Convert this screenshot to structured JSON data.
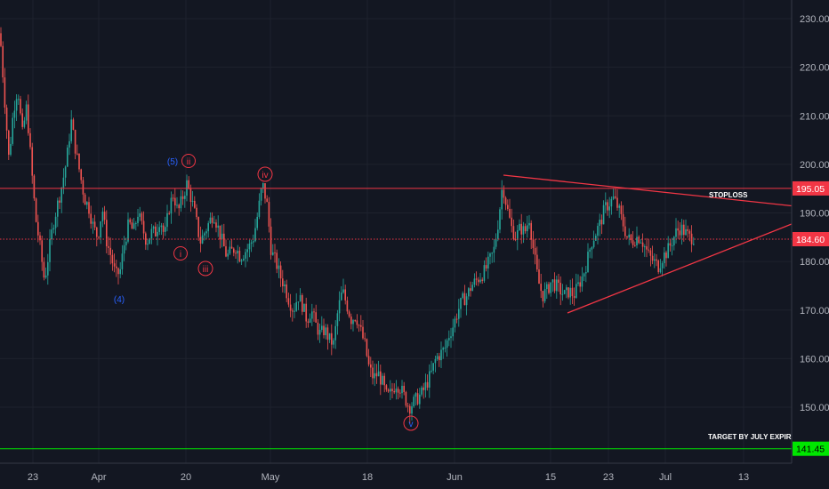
{
  "chart_data": {
    "type": "candlestick",
    "ylim": [
      139,
      232
    ],
    "y_ticks": [
      "150.00",
      "160.00",
      "170.00",
      "180.00",
      "190.00",
      "200.00",
      "210.00",
      "220.00",
      "230.00"
    ],
    "x_ticks": [
      "23",
      "Apr",
      "20",
      "May",
      "18",
      "Jun",
      "15",
      "23",
      "Jul",
      "13"
    ],
    "price_tags": [
      {
        "label": "195.05",
        "value": 195.05,
        "color": "#f23645"
      },
      {
        "label": "184.60",
        "value": 184.6,
        "color": "#f23645"
      },
      {
        "label": "141.45",
        "value": 141.45,
        "color": "#00e600"
      }
    ],
    "horizontal_lines": [
      {
        "value": 195.05,
        "color": "#f23645",
        "style": "solid"
      },
      {
        "value": 184.6,
        "color": "#f23645",
        "style": "dotted"
      },
      {
        "value": 141.45,
        "color": "#00e600",
        "style": "solid"
      }
    ],
    "annotations": [
      {
        "text": "STOPLOSS"
      },
      {
        "text": "TARGET BY JULY EXPIRY"
      }
    ],
    "wave_labels_blue": [
      "(4)",
      "(5)",
      "v"
    ],
    "wave_labels_red": [
      "ii",
      "i",
      "iii",
      "iv"
    ],
    "price_path": [
      [
        0,
        227
      ],
      [
        5,
        214
      ],
      [
        10,
        201
      ],
      [
        15,
        211
      ],
      [
        20,
        216
      ],
      [
        25,
        206
      ],
      [
        30,
        212
      ],
      [
        35,
        200
      ],
      [
        40,
        189
      ],
      [
        45,
        183
      ],
      [
        50,
        176
      ],
      [
        55,
        182
      ],
      [
        60,
        188
      ],
      [
        65,
        192
      ],
      [
        70,
        196
      ],
      [
        75,
        201
      ],
      [
        80,
        209
      ],
      [
        85,
        203
      ],
      [
        90,
        198
      ],
      [
        95,
        193
      ],
      [
        100,
        191
      ],
      [
        105,
        187
      ],
      [
        110,
        185
      ],
      [
        115,
        191
      ],
      [
        120,
        184
      ],
      [
        125,
        181
      ],
      [
        130,
        177
      ],
      [
        135,
        178
      ],
      [
        140,
        184
      ],
      [
        145,
        188
      ],
      [
        150,
        186
      ],
      [
        155,
        190
      ],
      [
        160,
        187
      ],
      [
        165,
        184
      ],
      [
        170,
        186
      ],
      [
        175,
        186
      ],
      [
        180,
        189
      ],
      [
        185,
        185
      ],
      [
        190,
        191
      ],
      [
        195,
        194
      ],
      [
        200,
        190
      ],
      [
        205,
        193
      ],
      [
        210,
        196
      ],
      [
        215,
        193
      ],
      [
        220,
        189
      ],
      [
        225,
        184
      ],
      [
        230,
        186
      ],
      [
        235,
        188
      ],
      [
        240,
        190
      ],
      [
        245,
        187
      ],
      [
        250,
        184
      ],
      [
        255,
        181
      ],
      [
        260,
        182
      ],
      [
        265,
        183
      ],
      [
        270,
        181
      ],
      [
        275,
        182
      ],
      [
        280,
        183
      ],
      [
        285,
        185
      ],
      [
        290,
        190
      ],
      [
        295,
        196
      ],
      [
        300,
        192
      ],
      [
        305,
        182
      ],
      [
        310,
        180
      ],
      [
        315,
        177
      ],
      [
        320,
        175
      ],
      [
        325,
        172
      ],
      [
        330,
        170
      ],
      [
        335,
        173
      ],
      [
        340,
        171
      ],
      [
        345,
        168
      ],
      [
        350,
        170
      ],
      [
        355,
        167
      ],
      [
        360,
        165
      ],
      [
        365,
        166
      ],
      [
        370,
        164
      ],
      [
        375,
        163
      ],
      [
        380,
        170
      ],
      [
        385,
        174
      ],
      [
        390,
        171
      ],
      [
        395,
        168
      ],
      [
        400,
        169
      ],
      [
        405,
        166
      ],
      [
        410,
        163
      ],
      [
        415,
        158
      ],
      [
        420,
        156
      ],
      [
        425,
        157
      ],
      [
        430,
        155
      ],
      [
        435,
        152
      ],
      [
        440,
        153
      ],
      [
        445,
        155
      ],
      [
        450,
        154
      ],
      [
        455,
        152
      ],
      [
        460,
        150
      ],
      [
        465,
        151
      ],
      [
        470,
        152
      ],
      [
        475,
        153
      ],
      [
        480,
        155
      ],
      [
        485,
        157
      ],
      [
        490,
        160
      ],
      [
        495,
        161
      ],
      [
        500,
        162
      ],
      [
        505,
        165
      ],
      [
        510,
        167
      ],
      [
        515,
        170
      ],
      [
        520,
        172
      ],
      [
        525,
        173
      ],
      [
        530,
        175
      ],
      [
        535,
        176
      ],
      [
        540,
        177
      ],
      [
        545,
        178
      ],
      [
        550,
        180
      ],
      [
        555,
        182
      ],
      [
        560,
        188
      ],
      [
        565,
        196
      ],
      [
        570,
        191
      ],
      [
        575,
        187
      ],
      [
        580,
        185
      ],
      [
        585,
        187
      ],
      [
        590,
        186
      ],
      [
        595,
        189
      ],
      [
        600,
        182
      ],
      [
        605,
        176
      ],
      [
        610,
        173
      ],
      [
        615,
        174
      ],
      [
        620,
        176
      ],
      [
        625,
        175
      ],
      [
        630,
        174
      ],
      [
        635,
        173
      ],
      [
        640,
        174
      ],
      [
        645,
        173
      ],
      [
        650,
        175
      ],
      [
        655,
        177
      ],
      [
        660,
        180
      ],
      [
        665,
        184
      ],
      [
        670,
        186
      ],
      [
        675,
        188
      ],
      [
        680,
        191
      ],
      [
        685,
        192
      ],
      [
        690,
        193
      ],
      [
        695,
        191
      ],
      [
        700,
        188
      ],
      [
        705,
        185
      ],
      [
        710,
        184
      ],
      [
        715,
        185
      ],
      [
        720,
        185
      ],
      [
        725,
        183
      ],
      [
        730,
        181
      ],
      [
        735,
        180
      ],
      [
        740,
        179
      ],
      [
        745,
        181
      ],
      [
        750,
        182
      ],
      [
        755,
        184
      ],
      [
        760,
        186
      ],
      [
        765,
        187
      ],
      [
        770,
        186
      ],
      [
        775,
        185
      ],
      [
        780,
        185
      ]
    ]
  }
}
